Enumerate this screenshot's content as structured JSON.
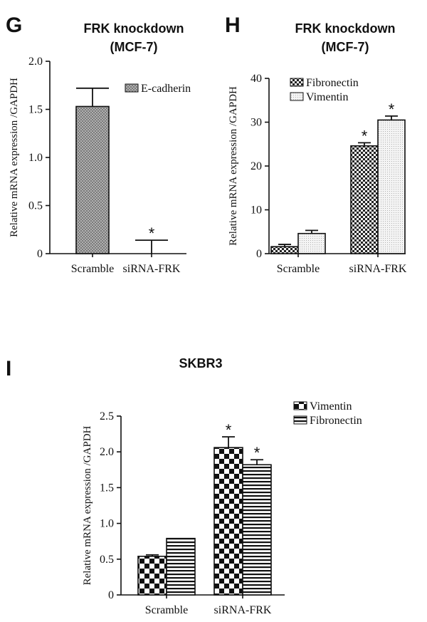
{
  "chart_data": [
    {
      "id": "G",
      "panel_label": "G",
      "type": "bar",
      "title_lines": [
        "FRK knockdown",
        "(MCF-7)"
      ],
      "ylabel": "Relative mRNA expression /GAPDH",
      "ylim": [
        0,
        2.0
      ],
      "yticks": [
        "0",
        "0.5",
        "1.0",
        "1.5",
        "2.0"
      ],
      "ytick_values": [
        0,
        0.5,
        1.0,
        1.5,
        2.0
      ],
      "categories": [
        "Scramble",
        "siRNA-FRK"
      ],
      "legend_position": "top-right",
      "series": [
        {
          "name": "E-cadherin",
          "values": [
            1.53,
            0.0
          ],
          "errors": [
            0.19,
            0.14
          ],
          "significant": [
            false,
            true
          ],
          "pattern": "crosshatch"
        }
      ],
      "annotation": "*"
    },
    {
      "id": "H",
      "panel_label": "H",
      "type": "bar",
      "title_lines": [
        "FRK knockdown",
        "(MCF-7)"
      ],
      "ylabel": "Relative mRNA expression /GAPDH",
      "ylim": [
        0,
        40
      ],
      "yticks": [
        "0",
        "10",
        "20",
        "30",
        "40"
      ],
      "ytick_values": [
        0,
        10,
        20,
        30,
        40
      ],
      "categories": [
        "Scramble",
        "siRNA-FRK"
      ],
      "legend_position": "top-left",
      "series": [
        {
          "name": "Fibronectin",
          "values": [
            1.6,
            24.6
          ],
          "errors": [
            0.5,
            0.7
          ],
          "significant": [
            false,
            true
          ],
          "pattern": "checker"
        },
        {
          "name": "Vimentin",
          "values": [
            4.6,
            30.5
          ],
          "errors": [
            0.7,
            0.9
          ],
          "significant": [
            false,
            true
          ],
          "pattern": "dots"
        }
      ],
      "annotation": "*"
    },
    {
      "id": "I",
      "panel_label": "I",
      "type": "bar",
      "title_lines": [
        "SKBR3"
      ],
      "ylabel": "Relative mRNA expression /GAPDH",
      "ylim": [
        0,
        2.5
      ],
      "yticks": [
        "0",
        "0.5",
        "1.0",
        "1.5",
        "2.0",
        "2.5"
      ],
      "ytick_values": [
        0,
        0.5,
        1.0,
        1.5,
        2.0,
        2.5
      ],
      "categories": [
        "Scramble",
        "siRNA-FRK"
      ],
      "legend_position": "top-right",
      "series": [
        {
          "name": "Vimentin",
          "values": [
            0.54,
            2.06
          ],
          "errors": [
            0.02,
            0.15
          ],
          "significant": [
            false,
            true
          ],
          "pattern": "bigchecker"
        },
        {
          "name": "Fibronectin",
          "values": [
            0.79,
            1.82
          ],
          "errors": [
            0.0,
            0.07
          ],
          "significant": [
            false,
            true
          ],
          "pattern": "hstripes"
        }
      ],
      "annotation": "*"
    }
  ]
}
